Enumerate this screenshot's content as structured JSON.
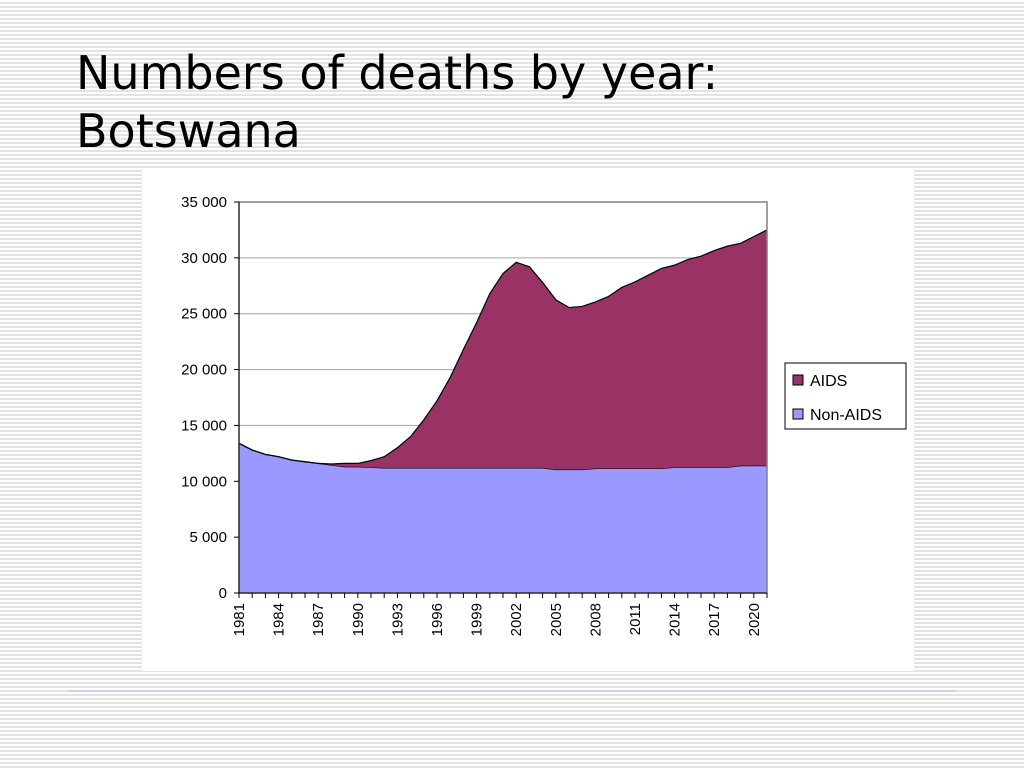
{
  "slide": {
    "title_line1": "Numbers of deaths by year:",
    "title_line2": "Botswana"
  },
  "chart_data": {
    "type": "area",
    "stacked": true,
    "ylim": [
      0,
      35000
    ],
    "yticks": [
      0,
      5000,
      10000,
      15000,
      20000,
      25000,
      30000,
      35000
    ],
    "ytick_labels": [
      "0",
      "5 000",
      "10 000",
      "15 000",
      "20 000",
      "25 000",
      "30 000",
      "35 000"
    ],
    "xtick_labels": [
      "1981",
      "1984",
      "1987",
      "1990",
      "1993",
      "1996",
      "1999",
      "2002",
      "2005",
      "2008",
      "2011",
      "2014",
      "2017",
      "2020"
    ],
    "grid": "horizontal",
    "legend_position": "right",
    "x": [
      1981,
      1982,
      1983,
      1984,
      1985,
      1986,
      1987,
      1988,
      1989,
      1990,
      1991,
      1992,
      1993,
      1994,
      1995,
      1996,
      1997,
      1998,
      1999,
      2000,
      2001,
      2002,
      2003,
      2004,
      2005,
      2006,
      2007,
      2008,
      2009,
      2010,
      2011,
      2012,
      2013,
      2014,
      2015,
      2016,
      2017,
      2018,
      2019,
      2020,
      2021
    ],
    "series": [
      {
        "name": "Non-AIDS",
        "color": "#9999ff",
        "values": [
          13400,
          12800,
          12400,
          12200,
          11900,
          11750,
          11600,
          11450,
          11300,
          11300,
          11250,
          11200,
          11200,
          11200,
          11200,
          11200,
          11200,
          11200,
          11200,
          11200,
          11200,
          11200,
          11200,
          11200,
          11050,
          11050,
          11050,
          11150,
          11150,
          11150,
          11150,
          11150,
          11150,
          11250,
          11250,
          11250,
          11250,
          11250,
          11400,
          11400,
          11400
        ]
      },
      {
        "name": "AIDS",
        "color": "#993366",
        "values": [
          0,
          0,
          0,
          0,
          0,
          0,
          0,
          100,
          300,
          300,
          600,
          1000,
          1800,
          2800,
          4300,
          6000,
          8100,
          10600,
          13000,
          15600,
          17400,
          18400,
          18000,
          16600,
          15200,
          14500,
          14600,
          14900,
          15400,
          16200,
          16700,
          17300,
          17900,
          18100,
          18600,
          18900,
          19400,
          19800,
          19900,
          20500,
          21100
        ]
      }
    ]
  }
}
